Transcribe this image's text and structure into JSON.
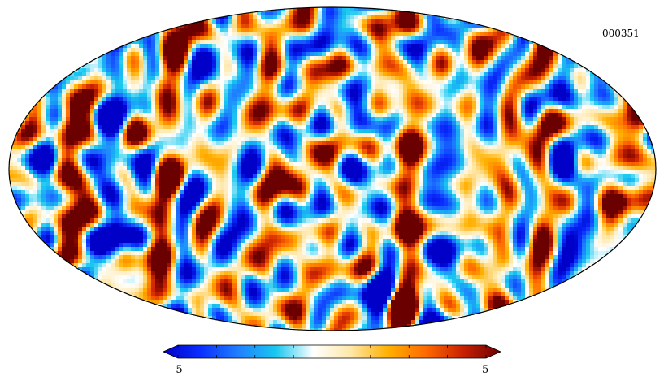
{
  "map": {
    "projection": "mollweide",
    "identifier": "000351",
    "colormap": [
      "#0000c8",
      "#0a2fff",
      "#1f7fff",
      "#18c8ef",
      "#ffffff",
      "#ffe7a8",
      "#ffb000",
      "#ff6a00",
      "#c82000",
      "#6a0000"
    ]
  },
  "colorbar": {
    "min_label": "-5",
    "max_label": "5",
    "min": -5,
    "max": 5,
    "tick_count": 8
  }
}
